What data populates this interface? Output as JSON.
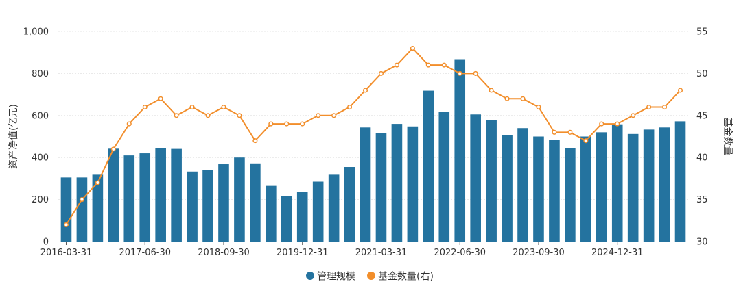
{
  "chart_data": {
    "type": "bar",
    "title": "",
    "x": [
      "2016-03-31",
      "2016-06-30",
      "2016-09-30",
      "2016-12-31",
      "2017-03-31",
      "2017-06-30",
      "2017-09-30",
      "2017-12-31",
      "2018-03-31",
      "2018-06-30",
      "2018-09-30",
      "2018-12-31",
      "2019-03-31",
      "2019-06-30",
      "2019-09-30",
      "2019-12-31",
      "2020-03-31",
      "2020-06-30",
      "2020-09-30",
      "2020-12-31",
      "2021-03-31",
      "2021-06-30",
      "2021-09-30",
      "2021-12-31",
      "2022-03-31",
      "2022-06-30",
      "2022-09-30",
      "2022-12-31",
      "2023-03-31",
      "2023-06-30",
      "2023-09-30",
      "2023-12-31",
      "2024-03-31",
      "2024-06-30",
      "2024-09-30",
      "2024-12-31",
      "2025-03-31",
      "2025-06-30",
      "2025-09-30",
      "2025-12-31"
    ],
    "x_tick_labels": [
      "2016-03-31",
      "2017-06-30",
      "2018-09-30",
      "2019-12-31",
      "2021-03-31",
      "2022-06-30",
      "2023-09-30",
      "2024-12-31"
    ],
    "y_left": {
      "label": "资产净值(亿元)",
      "ylim": [
        0,
        1000
      ],
      "ticks": [
        "0",
        "200",
        "400",
        "600",
        "800",
        "1,000"
      ],
      "tick_values": [
        0,
        200,
        400,
        600,
        800,
        1000
      ]
    },
    "y_right": {
      "label": "基金数量",
      "ylim": [
        30,
        55
      ],
      "ticks": [
        "30",
        "35",
        "40",
        "45",
        "50",
        "55"
      ],
      "tick_values": [
        30,
        35,
        40,
        45,
        50,
        55
      ]
    },
    "series": [
      {
        "name": "管理规模",
        "type": "bar",
        "axis": "left",
        "color": "#24739f",
        "values": [
          305,
          305,
          318,
          442,
          410,
          420,
          443,
          441,
          333,
          340,
          368,
          400,
          372,
          265,
          217,
          235,
          285,
          318,
          355,
          543,
          515,
          560,
          548,
          718,
          618,
          868,
          605,
          577,
          505,
          540,
          500,
          483,
          445,
          500,
          520,
          558,
          512,
          533,
          543,
          572
        ]
      },
      {
        "name": "基金数量(右)",
        "type": "line",
        "axis": "right",
        "color": "#f28e2b",
        "values": [
          32,
          35,
          37,
          41,
          44,
          46,
          47,
          45,
          46,
          45,
          46,
          45,
          42,
          44,
          44,
          44,
          45,
          45,
          46,
          48,
          50,
          51,
          53,
          51,
          51,
          50,
          50,
          48,
          47,
          47,
          46,
          43,
          43,
          42,
          44,
          44,
          45,
          46,
          46,
          48
        ]
      }
    ],
    "legend": {
      "position": "bottom-center",
      "items": [
        "管理规模",
        "基金数量(右)"
      ]
    },
    "grid": true
  }
}
